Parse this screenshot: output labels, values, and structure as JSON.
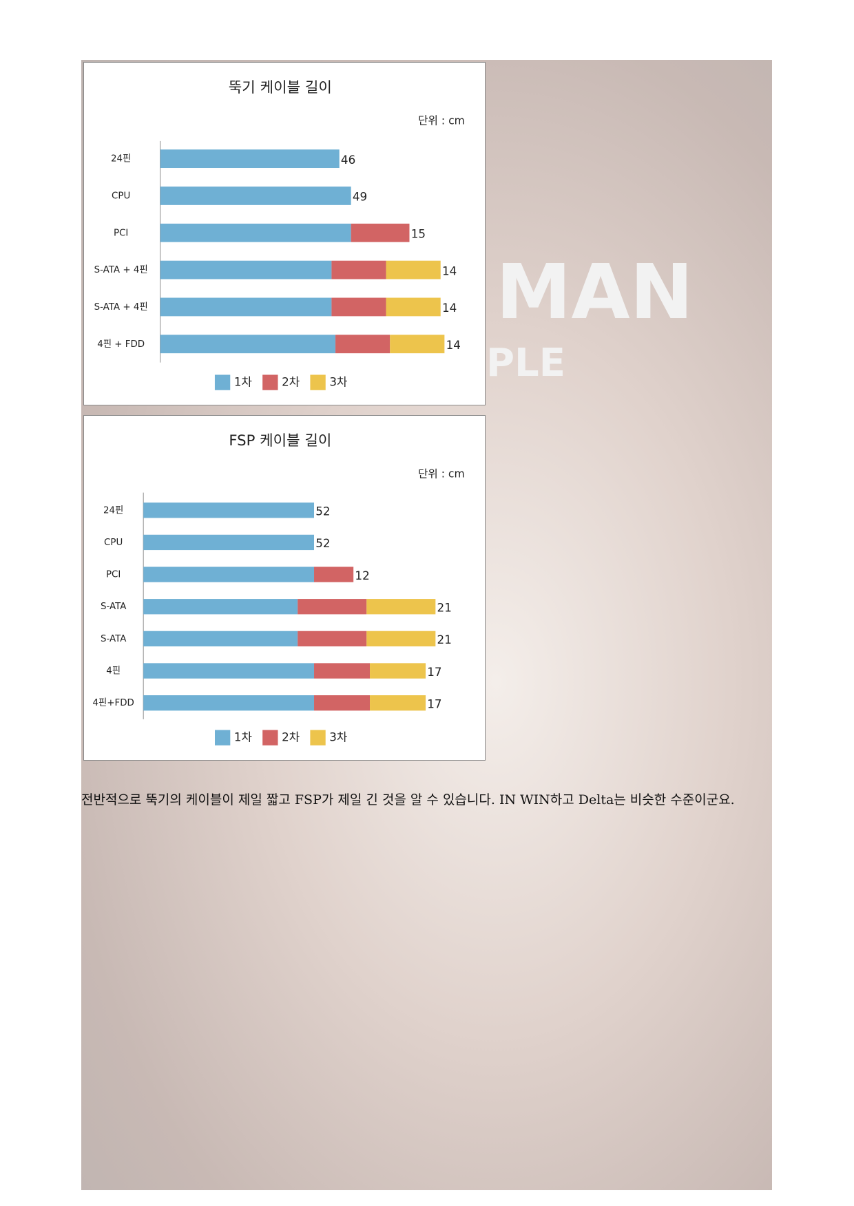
{
  "chart_data": [
    {
      "type": "bar",
      "orientation": "horizontal",
      "stacked": true,
      "title": "뚝기 케이블 길이",
      "unit_label": "단위 : cm",
      "categories": [
        "24핀",
        "CPU",
        "PCI",
        "S-ATA + 4핀",
        "S-ATA + 4핀",
        "4핀 + FDD"
      ],
      "series": [
        {
          "name": "1차",
          "color": "#6fb0d4",
          "values": [
            46,
            49,
            49,
            44,
            44,
            45
          ]
        },
        {
          "name": "2차",
          "color": "#d26464",
          "values": [
            null,
            null,
            15,
            14,
            14,
            14
          ]
        },
        {
          "name": "3차",
          "color": "#edc44c",
          "values": [
            null,
            null,
            null,
            14,
            14,
            14
          ]
        }
      ],
      "xlim": [
        0,
        80
      ],
      "legend": "bottom"
    },
    {
      "type": "bar",
      "orientation": "horizontal",
      "stacked": true,
      "title": "FSP 케이블 길이",
      "unit_label": "단위 : cm",
      "categories": [
        "24핀",
        "CPU",
        "PCI",
        "S-ATA",
        "S-ATA",
        "4핀",
        "4핀+FDD"
      ],
      "series": [
        {
          "name": "1차",
          "color": "#6fb0d4",
          "values": [
            52,
            52,
            52,
            47,
            47,
            52,
            52
          ]
        },
        {
          "name": "2차",
          "color": "#d26464",
          "values": [
            null,
            null,
            12,
            21,
            21,
            17,
            17
          ]
        },
        {
          "name": "3차",
          "color": "#edc44c",
          "values": [
            null,
            null,
            null,
            21,
            21,
            17,
            17
          ]
        }
      ],
      "xlim": [
        0,
        100
      ],
      "legend": "bottom"
    }
  ],
  "background_text": [
    "MAN",
    "PLE"
  ],
  "paragraph": "전반적으로 뚝기의 케이블이 제일 짧고 FSP가 제일 긴 것을 알 수 있습니다. IN WIN하고 Delta는 비슷한 수준이군요."
}
